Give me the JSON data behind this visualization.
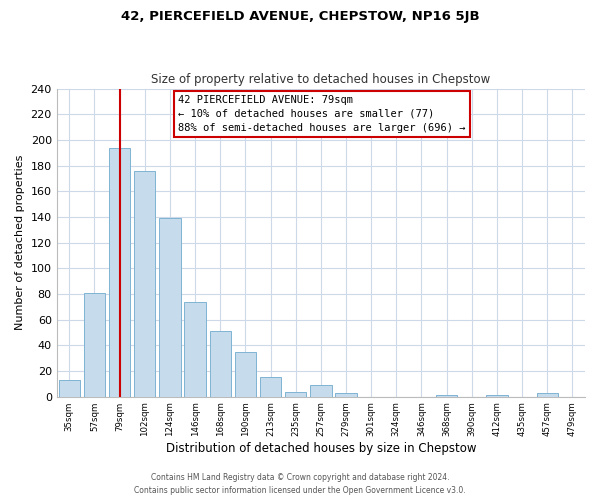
{
  "title": "42, PIERCEFIELD AVENUE, CHEPSTOW, NP16 5JB",
  "subtitle": "Size of property relative to detached houses in Chepstow",
  "xlabel": "Distribution of detached houses by size in Chepstow",
  "ylabel": "Number of detached properties",
  "bar_centers": [
    1,
    2,
    3,
    4,
    5,
    6,
    7,
    8,
    9,
    10,
    11,
    12,
    13,
    14,
    15,
    16,
    17,
    18,
    19,
    20,
    21
  ],
  "bar_heights": [
    13,
    81,
    194,
    176,
    139,
    74,
    51,
    35,
    15,
    4,
    9,
    3,
    0,
    0,
    0,
    1,
    0,
    1,
    0,
    3,
    0
  ],
  "bar_color": "#c6dcec",
  "bar_edge_color": "#7fb3d3",
  "highlight_bar": 3,
  "highlight_color": "#cc0000",
  "ylim": [
    0,
    240
  ],
  "yticks": [
    0,
    20,
    40,
    60,
    80,
    100,
    120,
    140,
    160,
    180,
    200,
    220,
    240
  ],
  "grid_color": "#cdd8e8",
  "annotation_title": "42 PIERCEFIELD AVENUE: 79sqm",
  "annotation_line1": "← 10% of detached houses are smaller (77)",
  "annotation_line2": "88% of semi-detached houses are larger (696) →",
  "annotation_box_color": "#ffffff",
  "annotation_box_edge": "#cc0000",
  "footer_line1": "Contains HM Land Registry data © Crown copyright and database right 2024.",
  "footer_line2": "Contains public sector information licensed under the Open Government Licence v3.0.",
  "tick_labels": [
    "35sqm",
    "57sqm",
    "79sqm",
    "102sqm",
    "124sqm",
    "146sqm",
    "168sqm",
    "190sqm",
    "213sqm",
    "235sqm",
    "257sqm",
    "279sqm",
    "301sqm",
    "324sqm",
    "346sqm",
    "368sqm",
    "390sqm",
    "412sqm",
    "435sqm",
    "457sqm",
    "479sqm"
  ]
}
